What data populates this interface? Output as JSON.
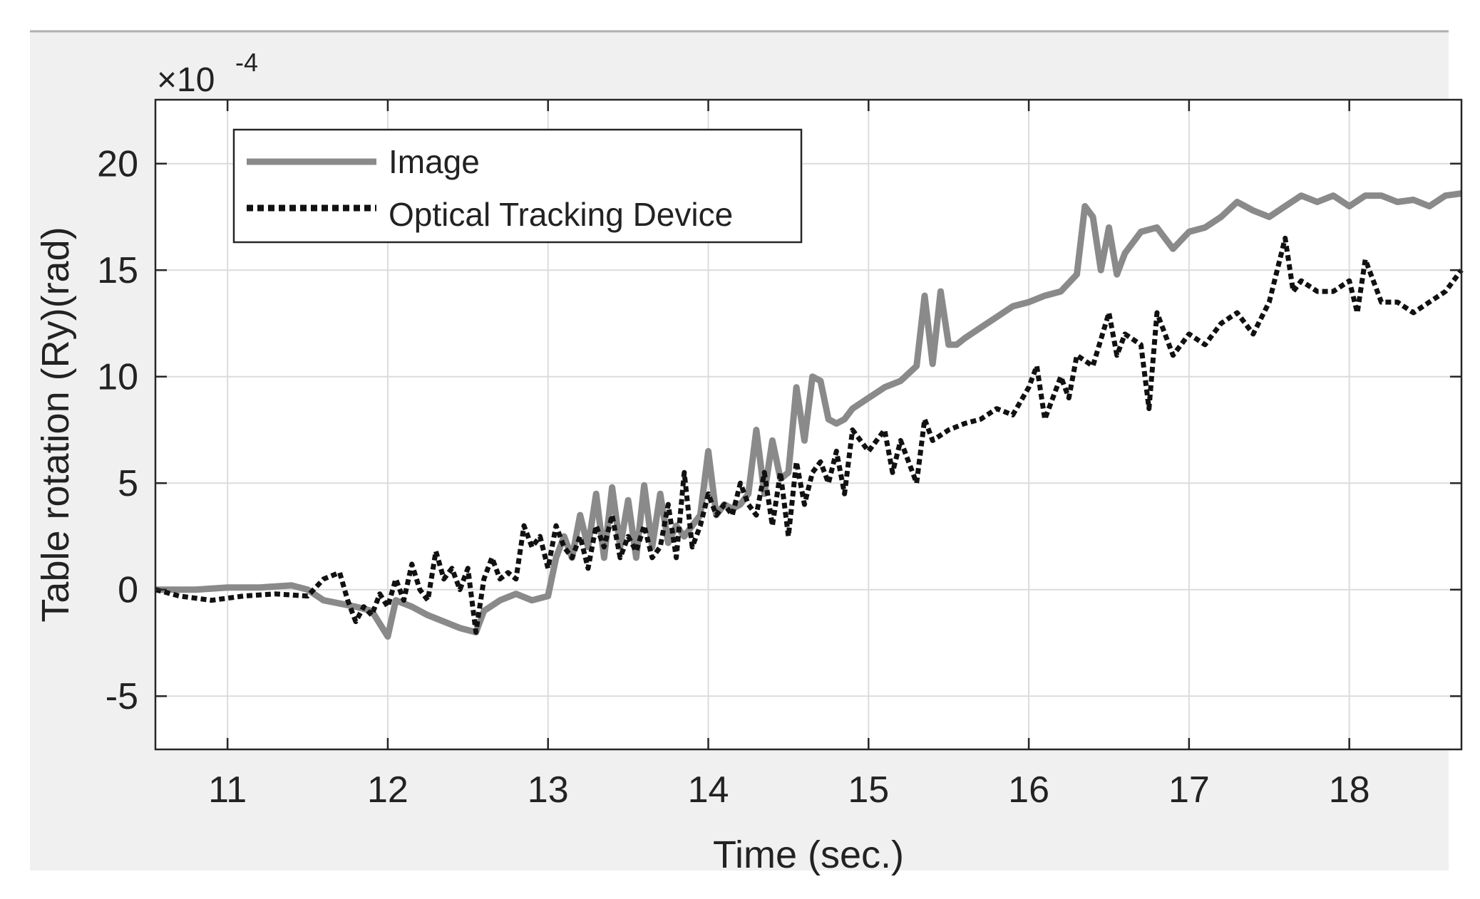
{
  "chart_data": {
    "type": "line",
    "xlabel": "Time (sec.)",
    "ylabel": "Table rotation (Ry)(rad)",
    "y_exponent": {
      "times": "×10",
      "power": "-4"
    },
    "xlim": [
      10.55,
      18.7
    ],
    "ylim": [
      -7.5,
      23
    ],
    "x_ticks": [
      11,
      12,
      13,
      14,
      15,
      16,
      17,
      18
    ],
    "x_tick_labels": [
      "11",
      "12",
      "13",
      "14",
      "15",
      "16",
      "17",
      "18"
    ],
    "y_ticks": [
      -5,
      0,
      5,
      10,
      15,
      20
    ],
    "y_tick_labels": [
      "-5",
      "0",
      "5",
      "10",
      "15",
      "20"
    ],
    "grid": true,
    "legend_position": "top-left",
    "colors": {
      "image": "#8a8a8a",
      "optical": "#111111",
      "background": "#f0f0f0"
    },
    "series": [
      {
        "name": "Image",
        "style": "solid",
        "x": [
          10.55,
          10.8,
          11.0,
          11.2,
          11.4,
          11.5,
          11.6,
          11.8,
          11.9,
          12.0,
          12.05,
          12.15,
          12.25,
          12.35,
          12.45,
          12.55,
          12.6,
          12.7,
          12.8,
          12.9,
          13.0,
          13.05,
          13.1,
          13.15,
          13.2,
          13.25,
          13.3,
          13.35,
          13.4,
          13.45,
          13.5,
          13.55,
          13.6,
          13.65,
          13.7,
          13.75,
          13.8,
          13.85,
          13.9,
          13.95,
          14.0,
          14.05,
          14.1,
          14.15,
          14.2,
          14.25,
          14.3,
          14.35,
          14.4,
          14.45,
          14.5,
          14.55,
          14.6,
          14.65,
          14.7,
          14.75,
          14.8,
          14.85,
          14.9,
          15.0,
          15.1,
          15.2,
          15.3,
          15.35,
          15.4,
          15.45,
          15.5,
          15.55,
          15.6,
          15.7,
          15.8,
          15.9,
          16.0,
          16.1,
          16.2,
          16.3,
          16.35,
          16.4,
          16.45,
          16.5,
          16.55,
          16.6,
          16.7,
          16.8,
          16.9,
          17.0,
          17.1,
          17.2,
          17.3,
          17.4,
          17.5,
          17.6,
          17.7,
          17.8,
          17.9,
          18.0,
          18.1,
          18.2,
          18.3,
          18.4,
          18.5,
          18.6,
          18.7
        ],
        "y": [
          0.0,
          0.0,
          0.1,
          0.1,
          0.2,
          0.0,
          -0.5,
          -0.8,
          -1.0,
          -2.2,
          -0.5,
          -0.8,
          -1.2,
          -1.5,
          -1.8,
          -2.0,
          -1.0,
          -0.5,
          -0.2,
          -0.5,
          -0.3,
          1.5,
          2.5,
          1.5,
          3.5,
          2.0,
          4.5,
          1.5,
          4.8,
          2.0,
          4.2,
          1.5,
          4.9,
          2.0,
          4.5,
          2.2,
          3.0,
          2.5,
          3.0,
          3.5,
          6.5,
          3.5,
          4.0,
          3.8,
          4.0,
          4.5,
          7.5,
          4.5,
          7.0,
          5.2,
          5.5,
          9.5,
          7.0,
          10.0,
          9.8,
          8.0,
          7.8,
          8.0,
          8.5,
          9.0,
          9.5,
          9.8,
          10.5,
          13.8,
          10.6,
          14.0,
          11.5,
          11.5,
          11.8,
          12.3,
          12.8,
          13.3,
          13.5,
          13.8,
          14.0,
          14.8,
          18.0,
          17.5,
          15.0,
          17.0,
          14.8,
          15.8,
          16.8,
          17.0,
          16.0,
          16.8,
          17.0,
          17.5,
          18.2,
          17.8,
          17.5,
          18.0,
          18.5,
          18.2,
          18.5,
          18.0,
          18.5,
          18.5,
          18.2,
          18.3,
          18.0,
          18.5,
          18.6
        ]
      },
      {
        "name": "Optical Tracking Device",
        "style": "dotted",
        "x": [
          10.55,
          10.7,
          10.9,
          11.1,
          11.3,
          11.5,
          11.6,
          11.7,
          11.75,
          11.8,
          11.85,
          11.9,
          11.95,
          12.0,
          12.05,
          12.1,
          12.15,
          12.2,
          12.25,
          12.3,
          12.35,
          12.4,
          12.45,
          12.5,
          12.55,
          12.6,
          12.65,
          12.7,
          12.75,
          12.8,
          12.85,
          12.9,
          12.95,
          13.0,
          13.05,
          13.1,
          13.15,
          13.2,
          13.25,
          13.3,
          13.35,
          13.4,
          13.45,
          13.5,
          13.55,
          13.6,
          13.65,
          13.7,
          13.75,
          13.8,
          13.85,
          13.9,
          13.95,
          14.0,
          14.05,
          14.1,
          14.15,
          14.2,
          14.25,
          14.3,
          14.35,
          14.4,
          14.45,
          14.5,
          14.55,
          14.6,
          14.65,
          14.7,
          14.75,
          14.8,
          14.85,
          14.9,
          15.0,
          15.1,
          15.15,
          15.2,
          15.3,
          15.35,
          15.4,
          15.5,
          15.6,
          15.7,
          15.8,
          15.9,
          16.0,
          16.05,
          16.1,
          16.2,
          16.25,
          16.3,
          16.4,
          16.5,
          16.55,
          16.6,
          16.7,
          16.75,
          16.8,
          16.9,
          17.0,
          17.1,
          17.2,
          17.3,
          17.4,
          17.5,
          17.6,
          17.65,
          17.7,
          17.8,
          17.9,
          18.0,
          18.05,
          18.1,
          18.2,
          18.3,
          18.4,
          18.5,
          18.6,
          18.7
        ],
        "y": [
          0.0,
          -0.3,
          -0.5,
          -0.3,
          -0.2,
          -0.3,
          0.5,
          0.8,
          -0.5,
          -1.5,
          -0.8,
          -1.2,
          -0.2,
          -0.8,
          0.5,
          -0.5,
          1.2,
          0.0,
          -0.5,
          1.8,
          0.5,
          1.0,
          0.0,
          1.0,
          -2.0,
          0.5,
          1.5,
          0.5,
          0.8,
          0.5,
          3.0,
          2.0,
          2.5,
          1.0,
          3.0,
          2.0,
          1.5,
          2.5,
          1.0,
          3.0,
          2.0,
          3.5,
          1.5,
          2.5,
          1.8,
          3.0,
          1.5,
          2.0,
          4.0,
          1.5,
          5.5,
          2.0,
          3.0,
          4.5,
          3.5,
          4.0,
          3.5,
          5.0,
          4.0,
          3.5,
          5.5,
          3.0,
          5.5,
          2.5,
          6.0,
          4.0,
          5.5,
          6.0,
          5.0,
          6.5,
          4.5,
          7.5,
          6.5,
          7.5,
          5.5,
          7.0,
          5.0,
          8.0,
          7.0,
          7.5,
          7.8,
          8.0,
          8.5,
          8.2,
          9.5,
          10.5,
          8.0,
          10.0,
          9.0,
          11.0,
          10.5,
          13.0,
          11.0,
          12.0,
          11.5,
          8.5,
          13.0,
          11.0,
          12.0,
          11.5,
          12.5,
          13.0,
          12.0,
          13.5,
          16.5,
          14.0,
          14.5,
          14.0,
          14.0,
          14.5,
          13.0,
          15.5,
          13.5,
          13.5,
          13.0,
          13.5,
          14.0,
          15.0
        ]
      }
    ]
  }
}
